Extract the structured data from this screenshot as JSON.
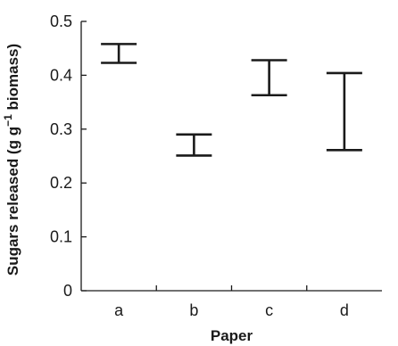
{
  "chart_data": {
    "type": "errorbar",
    "title": "",
    "xlabel": "Paper",
    "ylabel": "Sugars released (g g",
    "ylabel_superscript": "−1",
    "ylabel_suffix": " biomass)",
    "categories": [
      "a",
      "b",
      "c",
      "d"
    ],
    "ranges": [
      {
        "category": "a",
        "low": 0.423,
        "high": 0.458
      },
      {
        "category": "b",
        "low": 0.251,
        "high": 0.29
      },
      {
        "category": "c",
        "low": 0.363,
        "high": 0.428
      },
      {
        "category": "d",
        "low": 0.261,
        "high": 0.404
      }
    ],
    "ylim": [
      0,
      0.5
    ],
    "yticks": [
      0,
      0.1,
      0.2,
      0.3,
      0.4,
      0.5
    ],
    "ytick_labels": [
      "0",
      "0.1",
      "0.2",
      "0.3",
      "0.4",
      "0.5"
    ],
    "grid": false,
    "legend": "none"
  }
}
